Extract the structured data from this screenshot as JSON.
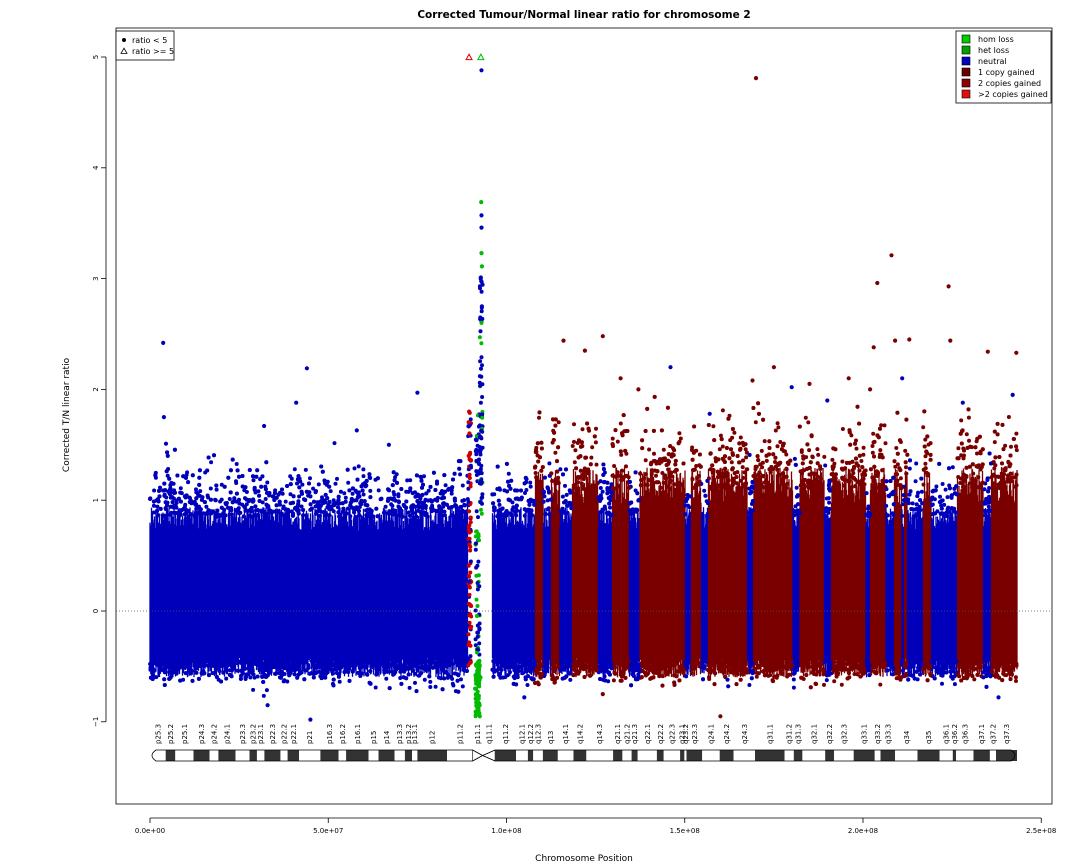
{
  "chart_data": {
    "type": "scatter",
    "title": "Corrected Tumour/Normal linear ratio for chromosome  2",
    "xlabel": "Chromosome Position",
    "ylabel": "Corrected T/N linear ratio",
    "xlim": [
      0,
      250000000
    ],
    "ylim": [
      -1.7,
      5.3
    ],
    "x_ticks": [
      0,
      50000000,
      100000000,
      150000000,
      200000000,
      250000000
    ],
    "x_tick_labels": [
      "0.0e+00",
      "5.0e+07",
      "1.0e+08",
      "1.5e+08",
      "2.0e+08",
      "2.5e+08"
    ],
    "y_ticks": [
      -1,
      0,
      1,
      2,
      3,
      4,
      5
    ],
    "y_tick_labels": [
      "−1",
      "0",
      "1",
      "2",
      "3",
      "4",
      "5"
    ],
    "reference_line_y": 0,
    "grid": false,
    "marker_legend": {
      "placement": "top-left",
      "entries": [
        {
          "label": "ratio < 5",
          "marker": "dot"
        },
        {
          "label": "ratio >= 5",
          "marker": "triangle"
        }
      ]
    },
    "legend": {
      "placement": "top-right",
      "entries": [
        {
          "label": "hom loss",
          "color": "#00cc00"
        },
        {
          "label": "het loss",
          "color": "#00a000"
        },
        {
          "label": "neutral",
          "color": "#0000c0"
        },
        {
          "label": "1 copy gained",
          "color": "#6a0000"
        },
        {
          "label": "2 copies gained",
          "color": "#900000"
        },
        {
          "label": ">2 copies gained",
          "color": "#e01010"
        }
      ]
    },
    "colors": {
      "neutral": "#0000bb",
      "gain": "#7a0000",
      "loss": "#00bb00",
      "gain_high": "#cc0000"
    },
    "series": [
      {
        "name": "neutral",
        "color": "#0000bb",
        "points": [
          [
            3700000,
            2.42
          ],
          [
            3900000,
            1.75
          ],
          [
            4500000,
            1.51
          ],
          [
            44000000,
            2.19
          ],
          [
            41000000,
            1.88
          ],
          [
            75000000,
            1.97
          ],
          [
            32000000,
            1.67
          ],
          [
            5000000,
            1.4
          ],
          [
            58000000,
            1.63
          ],
          [
            67000000,
            1.5
          ],
          [
            93000000,
            4.88
          ],
          [
            93000000,
            3.57
          ],
          [
            93000000,
            3.46
          ],
          [
            92800000,
            3.01
          ],
          [
            93100000,
            2.75
          ],
          [
            146000000,
            2.2
          ],
          [
            157000000,
            1.78
          ],
          [
            180000000,
            2.02
          ],
          [
            211000000,
            2.1
          ],
          [
            190000000,
            1.9
          ],
          [
            162000000,
            -0.62
          ],
          [
            162200000,
            -0.68
          ],
          [
            105000000,
            -0.78
          ],
          [
            45000000,
            -0.98
          ],
          [
            33000000,
            -0.85
          ],
          [
            238000000,
            -0.78
          ],
          [
            242000000,
            1.95
          ],
          [
            228000000,
            1.88
          ]
        ]
      },
      {
        "name": "1 copy gained",
        "color": "#7a0000",
        "points": [
          [
            170000000,
            4.81
          ],
          [
            208000000,
            3.21
          ],
          [
            204000000,
            2.96
          ],
          [
            224000000,
            2.93
          ],
          [
            127000000,
            2.48
          ],
          [
            122000000,
            2.35
          ],
          [
            116000000,
            2.44
          ],
          [
            209000000,
            2.44
          ],
          [
            213000000,
            2.45
          ],
          [
            224500000,
            2.44
          ],
          [
            203000000,
            2.38
          ],
          [
            243000000,
            2.33
          ],
          [
            235000000,
            2.34
          ],
          [
            137000000,
            2.0
          ],
          [
            132000000,
            2.1
          ],
          [
            175000000,
            2.2
          ],
          [
            196000000,
            2.1
          ],
          [
            169000000,
            2.08
          ],
          [
            160000000,
            -0.95
          ],
          [
            127000000,
            -0.75
          ],
          [
            219000000,
            -0.58
          ],
          [
            108000000,
            -0.65
          ],
          [
            202000000,
            2.0
          ],
          [
            185000000,
            2.05
          ]
        ]
      },
      {
        "name": "loss",
        "color": "#00bb00",
        "points": [
          [
            92900000,
            3.69
          ],
          [
            93000000,
            3.23
          ],
          [
            93100000,
            3.11
          ],
          [
            93000000,
            2.6
          ],
          [
            91500000,
            -0.75
          ],
          [
            92000000,
            -0.85
          ],
          [
            92500000,
            -0.95
          ],
          [
            91200000,
            -0.7
          ],
          [
            92700000,
            -0.6
          ]
        ]
      },
      {
        "name": "gain high",
        "color": "#cc0000",
        "points": [
          [
            89500000,
            1.8
          ],
          [
            89600000,
            1.6
          ],
          [
            89400000,
            1.4
          ],
          [
            89700000,
            1.2
          ],
          [
            89500000,
            0.9
          ],
          [
            89600000,
            0.6
          ]
        ]
      }
    ],
    "triangles": [
      {
        "x": 89500000,
        "y": 5.0,
        "color": "#dd0000"
      },
      {
        "x": 92800000,
        "y": 5.0,
        "color": "#00bb00"
      }
    ],
    "cytobands": [
      {
        "name": "p25.3",
        "start": 0,
        "end": 4400000,
        "stain": "gneg"
      },
      {
        "name": "p25.2",
        "start": 4400000,
        "end": 7100000,
        "stain": "gpos"
      },
      {
        "name": "p25.1",
        "start": 7100000,
        "end": 12200000,
        "stain": "gneg"
      },
      {
        "name": "p24.3",
        "start": 12200000,
        "end": 16700000,
        "stain": "gpos"
      },
      {
        "name": "p24.2",
        "start": 16700000,
        "end": 19200000,
        "stain": "gneg"
      },
      {
        "name": "p24.1",
        "start": 19200000,
        "end": 24000000,
        "stain": "gpos"
      },
      {
        "name": "p23.3",
        "start": 24000000,
        "end": 27900000,
        "stain": "gneg"
      },
      {
        "name": "p23.2",
        "start": 27900000,
        "end": 30000000,
        "stain": "gpos"
      },
      {
        "name": "p23.1",
        "start": 30000000,
        "end": 32100000,
        "stain": "gneg"
      },
      {
        "name": "p22.3",
        "start": 32100000,
        "end": 36600000,
        "stain": "gpos"
      },
      {
        "name": "p22.2",
        "start": 36600000,
        "end": 38600000,
        "stain": "gneg"
      },
      {
        "name": "p22.1",
        "start": 38600000,
        "end": 41800000,
        "stain": "gpos"
      },
      {
        "name": "p21",
        "start": 41800000,
        "end": 47800000,
        "stain": "gneg"
      },
      {
        "name": "p16.3",
        "start": 47800000,
        "end": 52900000,
        "stain": "gpos"
      },
      {
        "name": "p16.2",
        "start": 52900000,
        "end": 55000000,
        "stain": "gneg"
      },
      {
        "name": "p16.1",
        "start": 55000000,
        "end": 61300000,
        "stain": "gpos"
      },
      {
        "name": "p15",
        "start": 61300000,
        "end": 64100000,
        "stain": "gneg"
      },
      {
        "name": "p14",
        "start": 64100000,
        "end": 68600000,
        "stain": "gpos"
      },
      {
        "name": "p13.3",
        "start": 68600000,
        "end": 71500000,
        "stain": "gneg"
      },
      {
        "name": "p13.2",
        "start": 71500000,
        "end": 73500000,
        "stain": "gpos"
      },
      {
        "name": "p13.1",
        "start": 73500000,
        "end": 75000000,
        "stain": "gneg"
      },
      {
        "name": "p12",
        "start": 75000000,
        "end": 83300000,
        "stain": "gpos"
      },
      {
        "name": "p11.2",
        "start": 83300000,
        "end": 90500000,
        "stain": "gneg"
      },
      {
        "name": "p11.1",
        "start": 90500000,
        "end": 93300000,
        "stain": "acen"
      },
      {
        "name": "q11.1",
        "start": 93300000,
        "end": 96800000,
        "stain": "acen"
      },
      {
        "name": "q11.2",
        "start": 96800000,
        "end": 102700000,
        "stain": "gpos"
      },
      {
        "name": "q12.1",
        "start": 102700000,
        "end": 106000000,
        "stain": "gneg"
      },
      {
        "name": "q12.2",
        "start": 106000000,
        "end": 107500000,
        "stain": "gpos"
      },
      {
        "name": "q12.3",
        "start": 107500000,
        "end": 110200000,
        "stain": "gneg"
      },
      {
        "name": "q13",
        "start": 110200000,
        "end": 114400000,
        "stain": "gpos"
      },
      {
        "name": "q14.1",
        "start": 114400000,
        "end": 118800000,
        "stain": "gneg"
      },
      {
        "name": "q14.2",
        "start": 118800000,
        "end": 122400000,
        "stain": "gpos"
      },
      {
        "name": "q14.3",
        "start": 122400000,
        "end": 129900000,
        "stain": "gneg"
      },
      {
        "name": "q21.1",
        "start": 129900000,
        "end": 132500000,
        "stain": "gpos"
      },
      {
        "name": "q21.2",
        "start": 132500000,
        "end": 135100000,
        "stain": "gneg"
      },
      {
        "name": "q21.3",
        "start": 135100000,
        "end": 136800000,
        "stain": "gpos"
      },
      {
        "name": "q22.1",
        "start": 136800000,
        "end": 142200000,
        "stain": "gneg"
      },
      {
        "name": "q22.2",
        "start": 142200000,
        "end": 144100000,
        "stain": "gpos"
      },
      {
        "name": "q22.3",
        "start": 144100000,
        "end": 148700000,
        "stain": "gneg"
      },
      {
        "name": "q23.1",
        "start": 148700000,
        "end": 149900000,
        "stain": "gpos"
      },
      {
        "name": "q23.2",
        "start": 149900000,
        "end": 150500000,
        "stain": "gneg"
      },
      {
        "name": "q23.3",
        "start": 150500000,
        "end": 154900000,
        "stain": "gpos"
      },
      {
        "name": "q24.1",
        "start": 154900000,
        "end": 159800000,
        "stain": "gneg"
      },
      {
        "name": "q24.2",
        "start": 159800000,
        "end": 163700000,
        "stain": "gpos"
      },
      {
        "name": "q24.3",
        "start": 163700000,
        "end": 169700000,
        "stain": "gneg"
      },
      {
        "name": "q31.1",
        "start": 169700000,
        "end": 178000000,
        "stain": "gpos"
      },
      {
        "name": "q31.2",
        "start": 178000000,
        "end": 180600000,
        "stain": "gneg"
      },
      {
        "name": "q31.3",
        "start": 180600000,
        "end": 183000000,
        "stain": "gpos"
      },
      {
        "name": "q32.1",
        "start": 183000000,
        "end": 189400000,
        "stain": "gneg"
      },
      {
        "name": "q32.2",
        "start": 189400000,
        "end": 191900000,
        "stain": "gpos"
      },
      {
        "name": "q32.3",
        "start": 191900000,
        "end": 197400000,
        "stain": "gneg"
      },
      {
        "name": "q33.1",
        "start": 197400000,
        "end": 203300000,
        "stain": "gpos"
      },
      {
        "name": "q33.2",
        "start": 203300000,
        "end": 204900000,
        "stain": "gneg"
      },
      {
        "name": "q33.3",
        "start": 204900000,
        "end": 209000000,
        "stain": "gpos"
      },
      {
        "name": "q34",
        "start": 209000000,
        "end": 215300000,
        "stain": "gneg"
      },
      {
        "name": "q35",
        "start": 215300000,
        "end": 221500000,
        "stain": "gpos"
      },
      {
        "name": "q36.1",
        "start": 221500000,
        "end": 225200000,
        "stain": "gneg"
      },
      {
        "name": "q36.2",
        "start": 225200000,
        "end": 226100000,
        "stain": "gpos"
      },
      {
        "name": "q36.3",
        "start": 226100000,
        "end": 231000000,
        "stain": "gneg"
      },
      {
        "name": "q37.1",
        "start": 231000000,
        "end": 235600000,
        "stain": "gpos"
      },
      {
        "name": "q37.2",
        "start": 235600000,
        "end": 237300000,
        "stain": "gneg"
      },
      {
        "name": "q37.3",
        "start": 237300000,
        "end": 243200000,
        "stain": "gpos"
      }
    ]
  }
}
